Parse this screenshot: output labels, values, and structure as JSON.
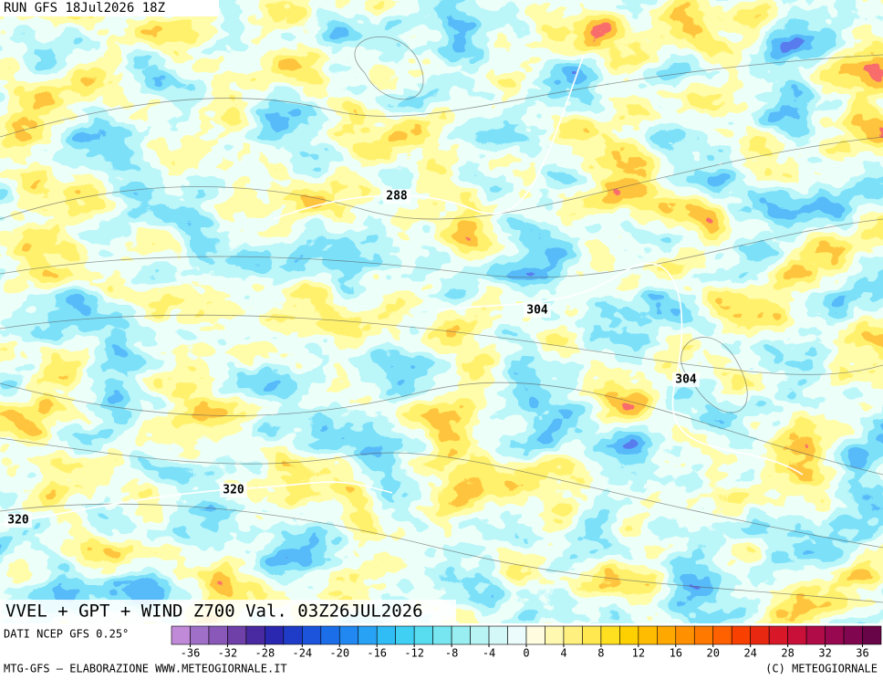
{
  "header": {
    "run": "RUN GFS 18Jul2026 18Z"
  },
  "map": {
    "contour_labels": [
      "288",
      "304",
      "304",
      "320",
      "320"
    ]
  },
  "title": "VVEL + GPT + WIND Z700 Val. 03Z26JUL2026",
  "legend": {
    "source": "DATI NCEP GFS 0.25°",
    "range": [
      -38,
      38
    ],
    "ticks": [
      -36,
      -32,
      -28,
      -24,
      -20,
      -16,
      -12,
      -8,
      -4,
      0,
      4,
      8,
      12,
      16,
      20,
      24,
      28,
      32,
      36
    ],
    "colors": [
      "#c08ad8",
      "#a070c8",
      "#8a58b8",
      "#6e40a8",
      "#4a2aa0",
      "#2a28b0",
      "#1e3cc8",
      "#1c54dc",
      "#1c6ee8",
      "#2088f0",
      "#28a2f4",
      "#30bcf4",
      "#40d0f4",
      "#58dcf0",
      "#78e6f0",
      "#98eef0",
      "#b8f4f4",
      "#d4f8f8",
      "#ecfcfc",
      "#fffce0",
      "#fff8b0",
      "#fff080",
      "#ffe850",
      "#ffe020",
      "#ffd000",
      "#ffbc00",
      "#ffa800",
      "#ff9000",
      "#ff7800",
      "#ff6000",
      "#f84000",
      "#e82810",
      "#d81828",
      "#c81038",
      "#b00c48",
      "#980850",
      "#800650",
      "#680448"
    ]
  },
  "footer": {
    "left": "MTG-GFS – ELABORAZIONE WWW.METEOGIORNALE.IT",
    "right": "(C) METEOGIORNALE"
  }
}
